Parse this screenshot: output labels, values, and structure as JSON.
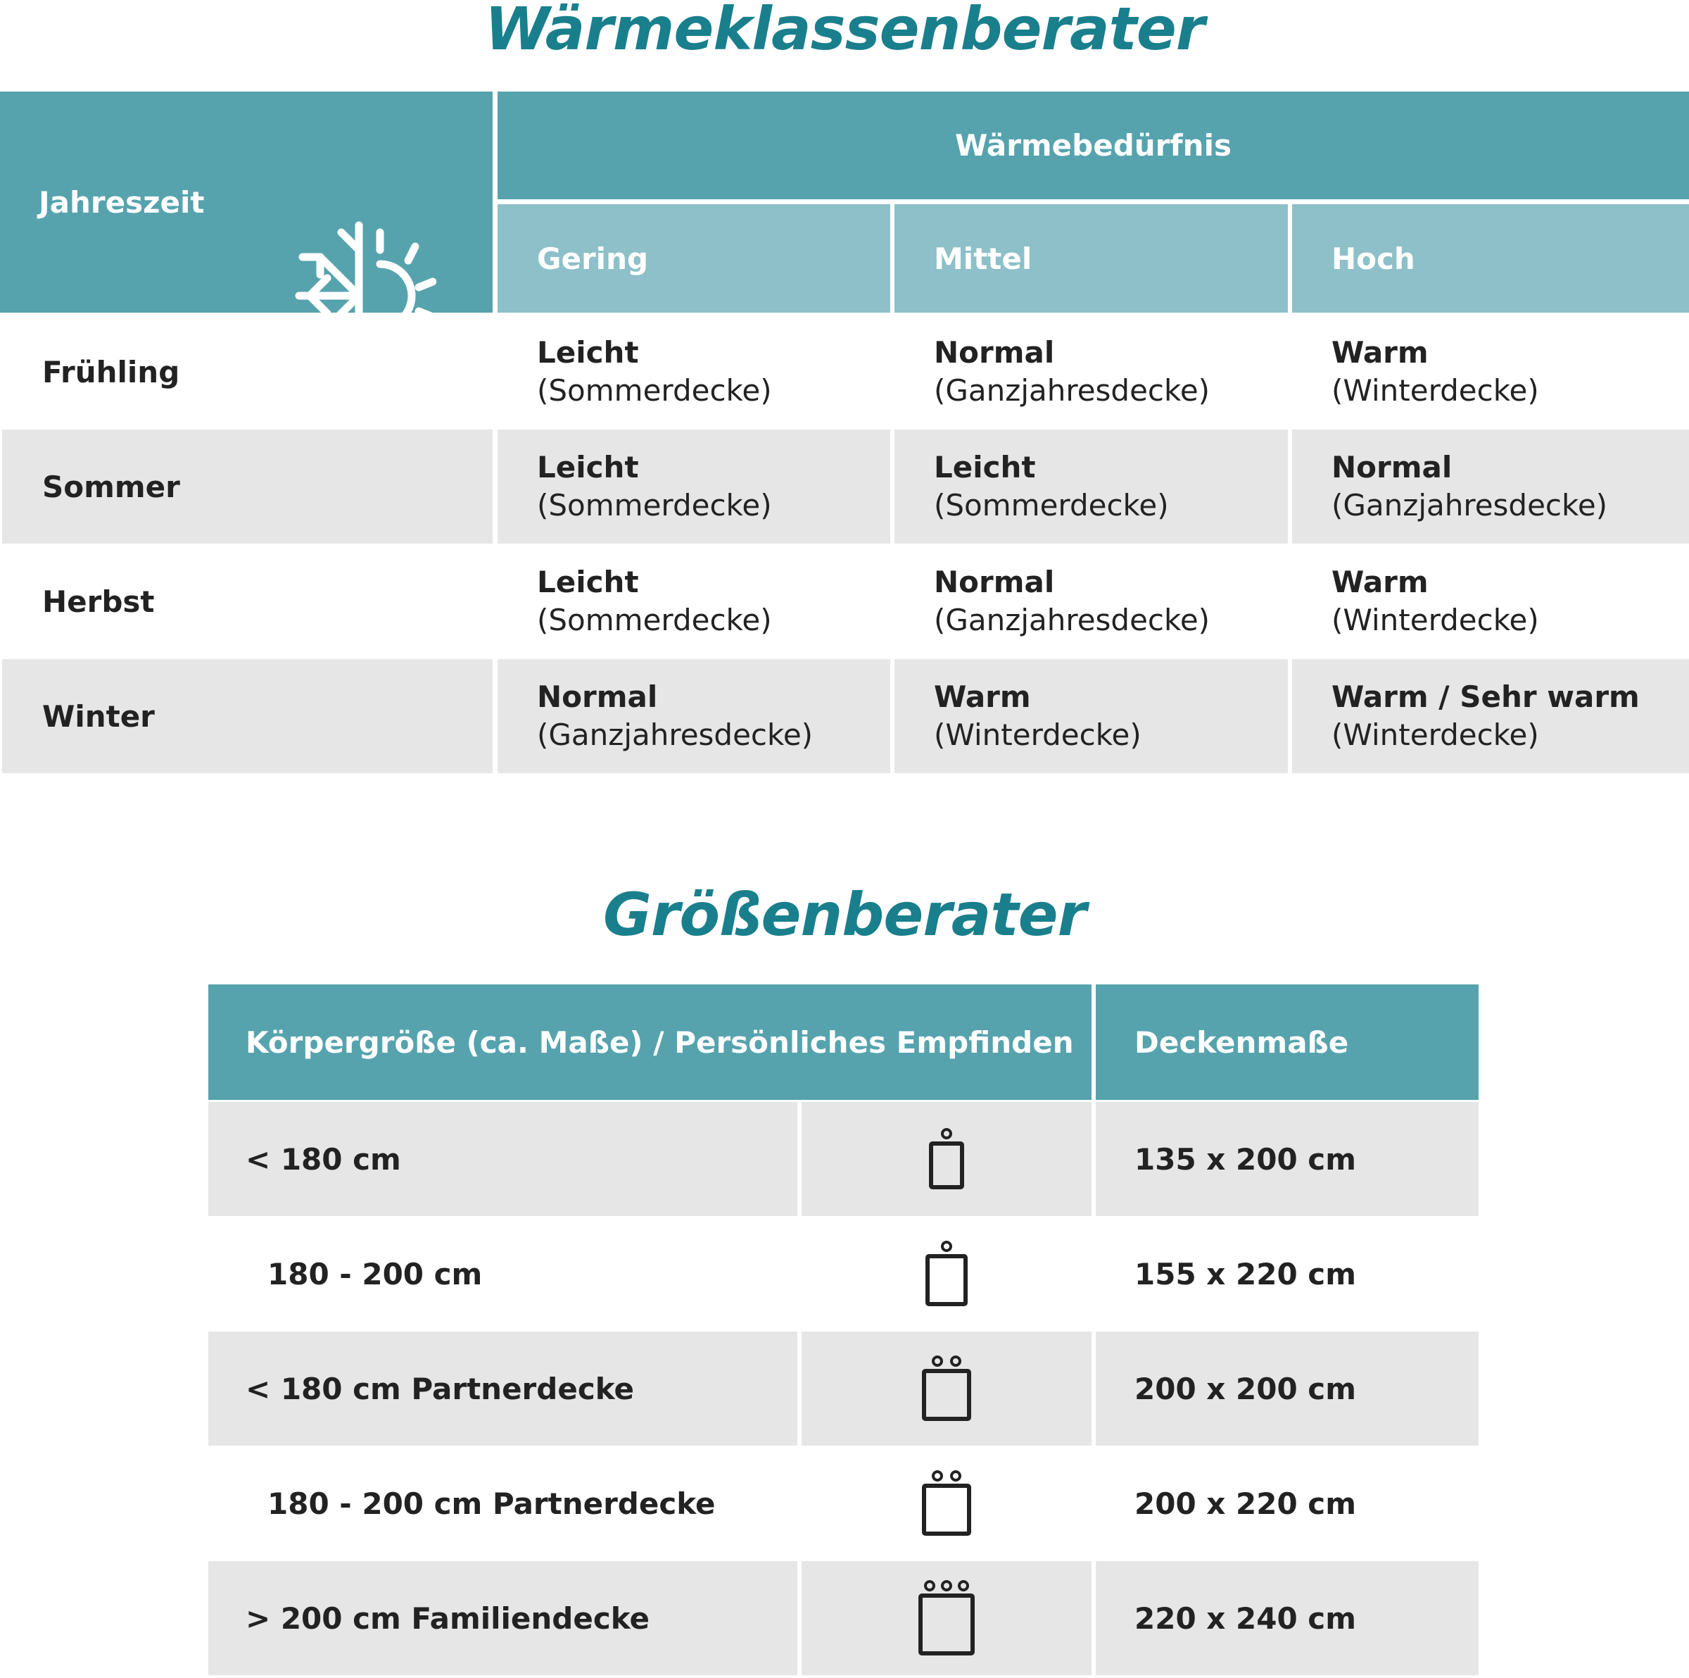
{
  "warmth": {
    "title": "Wärmeklassenberater",
    "season_header": "Jahreszeit",
    "season_icon": "snowflake-sun-icon",
    "need_header": "Wärmebedürfnis",
    "levels": [
      "Gering",
      "Mittel",
      "Hoch"
    ],
    "rows": [
      {
        "season": "Frühling",
        "cells": [
          {
            "class": "Leicht",
            "type": "(Sommerdecke)"
          },
          {
            "class": "Normal",
            "type": "(Ganzjahresdecke)"
          },
          {
            "class": "Warm",
            "type": "(Winterdecke)"
          }
        ]
      },
      {
        "season": "Sommer",
        "cells": [
          {
            "class": "Leicht",
            "type": "(Sommerdecke)"
          },
          {
            "class": "Leicht",
            "type": "(Sommerdecke)"
          },
          {
            "class": "Normal",
            "type": "(Ganzjahresdecke)"
          }
        ]
      },
      {
        "season": "Herbst",
        "cells": [
          {
            "class": "Leicht",
            "type": "(Sommerdecke)"
          },
          {
            "class": "Normal",
            "type": "(Ganzjahresdecke)"
          },
          {
            "class": "Warm",
            "type": "(Winterdecke)"
          }
        ]
      },
      {
        "season": "Winter",
        "cells": [
          {
            "class": "Normal",
            "type": "(Ganzjahresdecke)"
          },
          {
            "class": "Warm",
            "type": "(Winterdecke)"
          },
          {
            "class": "Warm / Sehr warm",
            "type": "(Winterdecke)"
          }
        ]
      }
    ]
  },
  "size": {
    "title": "Größenberater",
    "header_body": "Körpergröße (ca. Maße) / Persönliches Empfinden",
    "header_dims": "Deckenmaße",
    "rows": [
      {
        "label": "< 180 cm",
        "persons": 1,
        "dims": "135 x 200 cm",
        "icon": "single-blanket-icon"
      },
      {
        "label": "180 - 200 cm",
        "persons": 1,
        "dims": "155 x 220 cm",
        "icon": "single-large-blanket-icon"
      },
      {
        "label": "< 180 cm Partnerdecke",
        "persons": 2,
        "dims": "200 x 200 cm",
        "icon": "partner-blanket-icon"
      },
      {
        "label": "180 - 200 cm Partnerdecke",
        "persons": 2,
        "dims": "200 x 220 cm",
        "icon": "partner-large-blanket-icon"
      },
      {
        "label": "> 200 cm Familiendecke",
        "persons": 3,
        "dims": "220 x 240 cm",
        "icon": "family-blanket-icon"
      }
    ]
  },
  "colors": {
    "accent": "#1a7f8c",
    "header": "#56a3ae",
    "subheader": "#8dc0c8",
    "stripe": "#e6e6e6"
  }
}
